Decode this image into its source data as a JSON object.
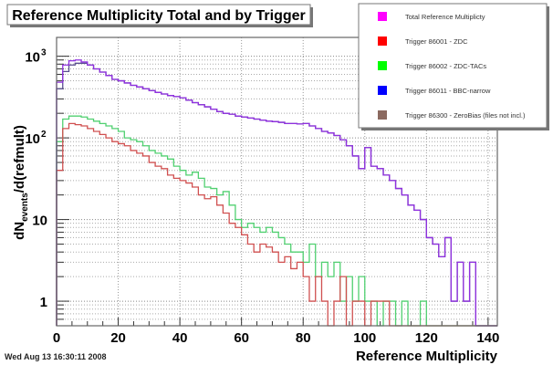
{
  "chart_data": {
    "type": "histogram-step",
    "title": "Reference Multiplicity Total and by Trigger",
    "xlabel": "Reference Multiplicity",
    "ylabel": "dN_events/d(refmult)",
    "ylabel_main": "dN",
    "ylabel_sub": "events",
    "ylabel_tail": "/d(refmult)",
    "timestamp": "Wed Aug 13 16:30:11 2008",
    "xlim": [
      0,
      143
    ],
    "ylim": [
      0.5,
      1700
    ],
    "yscale": "log",
    "grid": true,
    "legend_position": "top-right",
    "x_ticks": [
      "0",
      "20",
      "40",
      "60",
      "80",
      "100",
      "120",
      "140"
    ],
    "y_ticks": [
      {
        "base": "10",
        "exp": "3",
        "value": 1000
      },
      {
        "base": "10",
        "exp": "2",
        "value": 100
      },
      {
        "base": "10",
        "exp": "",
        "value": 10
      },
      {
        "base": "1",
        "exp": "",
        "value": 1
      }
    ],
    "bin_width": 2,
    "series": [
      {
        "name": "Trigger 86011 - BBC-narrow",
        "color": "#0000ff",
        "line_color": "#5a4f8f",
        "values": [
          400,
          650,
          780,
          820,
          820,
          780,
          700,
          640,
          580,
          520,
          500,
          470,
          440,
          420,
          400,
          380,
          360,
          345,
          330,
          320,
          310,
          290,
          270,
          255,
          240,
          225,
          210,
          200,
          195,
          185,
          180,
          175,
          170,
          165,
          160,
          158,
          155,
          150,
          150,
          148,
          150,
          140,
          130,
          120,
          115,
          107,
          95,
          80,
          60,
          42,
          76,
          45,
          42,
          35,
          30,
          24,
          20,
          15,
          13,
          10,
          6,
          5,
          3.5,
          6,
          1,
          3,
          1,
          3,
          0,
          0,
          0,
          0
        ]
      },
      {
        "name": "Total Reference Multiplicty",
        "color": "#ff00ff",
        "line_color": "#9030e0",
        "values": [
          480,
          780,
          880,
          900,
          850,
          780,
          700,
          640,
          580,
          520,
          500,
          470,
          440,
          420,
          400,
          380,
          360,
          345,
          330,
          320,
          310,
          290,
          270,
          255,
          240,
          225,
          210,
          200,
          195,
          185,
          180,
          175,
          170,
          165,
          160,
          158,
          155,
          150,
          150,
          148,
          150,
          140,
          130,
          120,
          115,
          107,
          95,
          80,
          60,
          42,
          76,
          45,
          42,
          35,
          30,
          24,
          20,
          15,
          13,
          10,
          6,
          5,
          3.5,
          6,
          1,
          3,
          1,
          3,
          0,
          0,
          0,
          0
        ]
      },
      {
        "name": "Trigger 86001 - ZDC",
        "color": "#ff0000",
        "line_color": "#d05050",
        "values": [
          40,
          130,
          150,
          145,
          140,
          130,
          120,
          110,
          100,
          90,
          85,
          80,
          70,
          65,
          60,
          50,
          45,
          42,
          35,
          32,
          30,
          28,
          25,
          20,
          18,
          19,
          15,
          12,
          9,
          8,
          6.5,
          5,
          4,
          5,
          4.6,
          4,
          3,
          3.5,
          2.5,
          3,
          2,
          1,
          2,
          1,
          0,
          1,
          2,
          0,
          1,
          1,
          0,
          1,
          1,
          1,
          0,
          0,
          0,
          0,
          0,
          0,
          0,
          0,
          0,
          0,
          0,
          0,
          0,
          0,
          0,
          0,
          0,
          0
        ]
      },
      {
        "name": "Trigger 86002 - ZDC-TACs",
        "color": "#00ff00",
        "line_color": "#50d070",
        "values": [
          90,
          170,
          185,
          185,
          180,
          170,
          160,
          150,
          140,
          130,
          120,
          100,
          95,
          90,
          80,
          70,
          65,
          60,
          55,
          45,
          40,
          35,
          38,
          32,
          25,
          24,
          20,
          22,
          15,
          10,
          8,
          9,
          8,
          7,
          8,
          7,
          6,
          5,
          4,
          4,
          3,
          5,
          2,
          3,
          2,
          3,
          1,
          2,
          1,
          2,
          1,
          1,
          0,
          1,
          1,
          0,
          1,
          0,
          0,
          1,
          0,
          0,
          0,
          0,
          0,
          0,
          0,
          0,
          0,
          0,
          0,
          0
        ]
      },
      {
        "name": "Trigger 86300 - ZeroBias (files not incl.)",
        "color": "#8b6a60",
        "line_color": "#8b6a60",
        "values": []
      }
    ],
    "legend_order": [
      1,
      2,
      3,
      0,
      4
    ]
  }
}
